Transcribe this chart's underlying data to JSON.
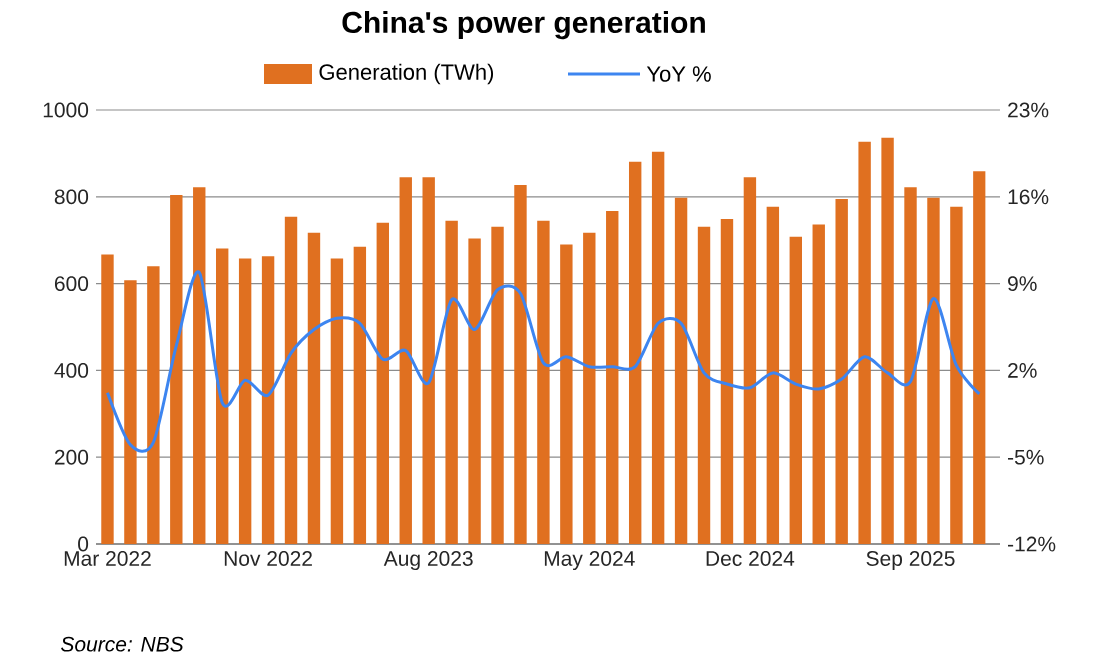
{
  "chart_data": {
    "type": "bar",
    "title": "China's power generation",
    "categories": [
      "Mar 2022",
      null,
      null,
      null,
      null,
      null,
      null,
      "Nov 2022",
      null,
      null,
      null,
      null,
      null,
      null,
      "Aug 2023",
      null,
      null,
      null,
      null,
      null,
      null,
      "May 2024",
      null,
      null,
      null,
      null,
      null,
      null,
      "Dec 2024",
      null,
      null,
      null,
      null,
      null,
      null,
      "Sep 2025",
      null,
      null,
      null
    ],
    "series": [
      {
        "name": "Generation (TWh)",
        "color": "#e07020",
        "values": [
          667,
          608,
          640,
          804,
          822,
          681,
          658,
          663,
          754,
          717,
          658,
          685,
          740,
          845,
          845,
          745,
          704,
          731,
          827,
          745,
          690,
          717,
          767,
          881,
          904,
          798,
          731,
          749,
          845,
          777,
          708,
          736,
          795,
          927,
          936,
          822,
          798,
          777,
          859
        ]
      },
      {
        "name": "YoY %",
        "type": "line",
        "axis": "y2",
        "color": "#3d85f0",
        "values": [
          0.2,
          -4.0,
          -3.8,
          4.0,
          9.9,
          -0.6,
          1.2,
          0.0,
          3.4,
          5.3,
          6.2,
          5.8,
          2.9,
          3.6,
          1.0,
          7.7,
          5.3,
          8.5,
          8.2,
          2.6,
          3.1,
          2.3,
          2.3,
          2.3,
          5.8,
          5.8,
          1.8,
          0.9,
          0.6,
          1.8,
          0.9,
          0.5,
          1.3,
          3.1,
          1.8,
          1.1,
          7.8,
          2.4,
          0.1
        ]
      }
    ],
    "ylim": [
      0,
      1000
    ],
    "yticks": [
      0,
      200,
      400,
      600,
      800,
      1000
    ],
    "y2lim": [
      -12,
      23
    ],
    "y2ticks": [
      {
        "value": -12,
        "label": "-12%"
      },
      {
        "value": -5,
        "label": "-5%"
      },
      {
        "value": 2,
        "label": "2%"
      },
      {
        "value": 9,
        "label": "9%"
      },
      {
        "value": 16,
        "label": "16%"
      },
      {
        "value": 23,
        "label": "23%"
      }
    ],
    "grid": "y",
    "legend": "top",
    "line_style": "solid",
    "marker": "none",
    "annotations": [
      "Source: NBS"
    ]
  }
}
